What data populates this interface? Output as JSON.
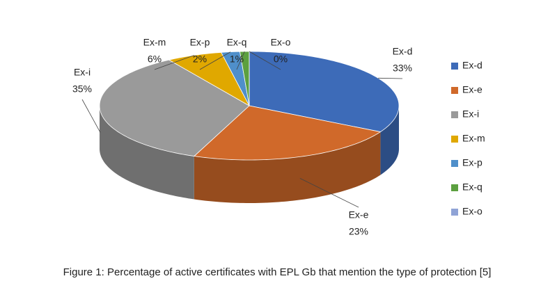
{
  "chart_data": {
    "type": "pie",
    "categories": [
      "Ex-d",
      "Ex-e",
      "Ex-i",
      "Ex-m",
      "Ex-p",
      "Ex-q",
      "Ex-o"
    ],
    "values": [
      33,
      23,
      35,
      6,
      2,
      1,
      0
    ],
    "value_labels": [
      "33%",
      "23%",
      "35%",
      "6%",
      "2%",
      "1%",
      "0%"
    ],
    "colors": [
      "#3d6bb8",
      "#d0692a",
      "#9a9a9a",
      "#e0a800",
      "#4f8fca",
      "#5ca040",
      "#8fa3d6"
    ],
    "legend": "right",
    "caption": "Figure 1: Percentage of active certificates with EPL Gb that mention the type of protection [5]"
  }
}
